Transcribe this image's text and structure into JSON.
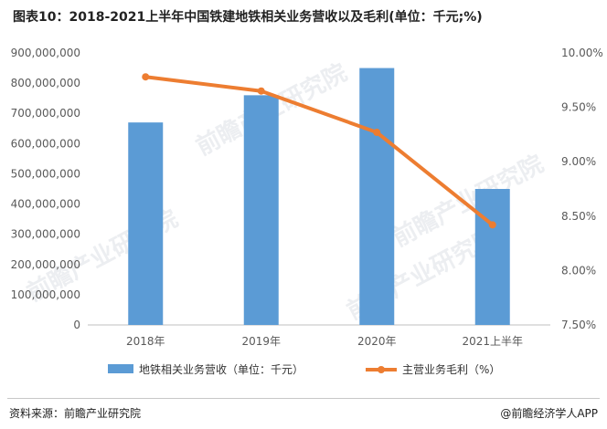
{
  "title": "图表10：2018-2021上半年中国铁建地铁相关业务营收以及毛利(单位：千元;%)",
  "watermark_text": "前瞻产业研究院",
  "footer": {
    "source": "资料来源：前瞻产业研究院",
    "brand": "@前瞻经济学人APP"
  },
  "chart_data": {
    "type": "bar+line",
    "categories": [
      "2018年",
      "2019年",
      "2020年",
      "2021上半年"
    ],
    "series": [
      {
        "name": "地铁相关业务营收（单位：千元）",
        "type": "bar",
        "axis": "left",
        "color": "#5b9bd5",
        "values": [
          670000000,
          760000000,
          850000000,
          450000000
        ]
      },
      {
        "name": "主营业务毛利（%）",
        "type": "line",
        "axis": "right",
        "color": "#ed7d31",
        "values": [
          9.78,
          9.65,
          9.27,
          8.42
        ]
      }
    ],
    "y_left": {
      "min": 0,
      "max": 900000000,
      "ticks": [
        "0",
        "100,000,000",
        "200,000,000",
        "300,000,000",
        "400,000,000",
        "500,000,000",
        "600,000,000",
        "700,000,000",
        "800,000,000",
        "900,000,000"
      ]
    },
    "y_right": {
      "min": 7.5,
      "max": 10.0,
      "ticks": [
        "7.50%",
        "8.00%",
        "8.50%",
        "9.00%",
        "9.50%",
        "10.00%"
      ]
    },
    "legend_position": "bottom",
    "grid": false
  }
}
